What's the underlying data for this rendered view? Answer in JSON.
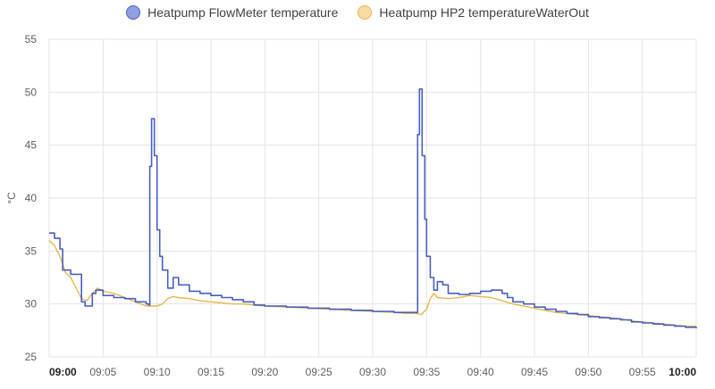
{
  "chart_data": {
    "type": "line",
    "ylabel": "°C",
    "ylim": [
      25,
      55
    ],
    "yticks": [
      25,
      30,
      35,
      40,
      45,
      50,
      55
    ],
    "xlim": [
      "09:00",
      "10:00"
    ],
    "xticks": [
      "09:00",
      "09:05",
      "09:10",
      "09:15",
      "09:20",
      "09:25",
      "09:30",
      "09:35",
      "09:40",
      "09:45",
      "09:50",
      "09:55",
      "10:00"
    ],
    "grid": true,
    "legend_position": "top-center",
    "series": [
      {
        "name": "Heatpump FlowMeter temperature",
        "color": "#4a5fc1",
        "fill": "#8ea0e0",
        "step": true,
        "points": [
          [
            "09:00",
            36.7
          ],
          [
            "09:00:30",
            36.2
          ],
          [
            "09:01",
            35.2
          ],
          [
            "09:01:15",
            33.2
          ],
          [
            "09:02",
            32.8
          ],
          [
            "09:02:30",
            32.8
          ],
          [
            "09:03",
            30.2
          ],
          [
            "09:03:20",
            29.8
          ],
          [
            "09:04",
            31.0
          ],
          [
            "09:04:20",
            31.3
          ],
          [
            "09:05",
            30.8
          ],
          [
            "09:06",
            30.6
          ],
          [
            "09:07",
            30.5
          ],
          [
            "09:08",
            30.2
          ],
          [
            "09:09",
            30.0
          ],
          [
            "09:09:15",
            29.9
          ],
          [
            "09:09:20",
            43.0
          ],
          [
            "09:09:30",
            47.5
          ],
          [
            "09:09:45",
            44.0
          ],
          [
            "09:10",
            37.0
          ],
          [
            "09:10:15",
            34.5
          ],
          [
            "09:10:30",
            33.2
          ],
          [
            "09:11",
            31.5
          ],
          [
            "09:11:30",
            32.5
          ],
          [
            "09:12",
            31.8
          ],
          [
            "09:13",
            31.2
          ],
          [
            "09:14",
            31.0
          ],
          [
            "09:15",
            30.8
          ],
          [
            "09:16",
            30.6
          ],
          [
            "09:17",
            30.4
          ],
          [
            "09:18",
            30.2
          ],
          [
            "09:19",
            29.9
          ],
          [
            "09:20",
            29.8
          ],
          [
            "09:22",
            29.7
          ],
          [
            "09:24",
            29.6
          ],
          [
            "09:26",
            29.5
          ],
          [
            "09:28",
            29.4
          ],
          [
            "09:30",
            29.3
          ],
          [
            "09:32",
            29.2
          ],
          [
            "09:33",
            29.2
          ],
          [
            "09:34",
            29.2
          ],
          [
            "09:34:10",
            46.0
          ],
          [
            "09:34:20",
            50.3
          ],
          [
            "09:34:35",
            44.0
          ],
          [
            "09:34:50",
            38.0
          ],
          [
            "09:35",
            34.5
          ],
          [
            "09:35:20",
            32.5
          ],
          [
            "09:35:40",
            31.3
          ],
          [
            "09:36",
            32.1
          ],
          [
            "09:36:30",
            31.8
          ],
          [
            "09:37",
            31.0
          ],
          [
            "09:38",
            30.9
          ],
          [
            "09:39",
            31.0
          ],
          [
            "09:40",
            31.2
          ],
          [
            "09:41",
            31.3
          ],
          [
            "09:42",
            31.0
          ],
          [
            "09:42:30",
            30.6
          ],
          [
            "09:43",
            30.2
          ],
          [
            "09:44",
            30.0
          ],
          [
            "09:45",
            29.7
          ],
          [
            "09:46",
            29.5
          ],
          [
            "09:47",
            29.3
          ],
          [
            "09:48",
            29.1
          ],
          [
            "09:49",
            29.0
          ],
          [
            "09:50",
            28.8
          ],
          [
            "09:51",
            28.7
          ],
          [
            "09:52",
            28.6
          ],
          [
            "09:53",
            28.5
          ],
          [
            "09:54",
            28.3
          ],
          [
            "09:55",
            28.2
          ],
          [
            "09:56",
            28.1
          ],
          [
            "09:57",
            28.0
          ],
          [
            "09:58",
            27.9
          ],
          [
            "09:59",
            27.8
          ],
          [
            "10:00",
            27.7
          ]
        ]
      },
      {
        "name": "Heatpump HP2 temperatureWaterOut",
        "color": "#e8b74c",
        "fill": "#f6dca5",
        "step": false,
        "points": [
          [
            "09:00",
            36.0
          ],
          [
            "09:00:30",
            35.5
          ],
          [
            "09:01",
            34.5
          ],
          [
            "09:01:30",
            33.0
          ],
          [
            "09:02",
            32.5
          ],
          [
            "09:02:30",
            31.5
          ],
          [
            "09:03",
            30.5
          ],
          [
            "09:03:30",
            30.3
          ],
          [
            "09:04",
            31.0
          ],
          [
            "09:04:30",
            31.5
          ],
          [
            "09:05",
            31.2
          ],
          [
            "09:06",
            31.0
          ],
          [
            "09:07",
            30.6
          ],
          [
            "09:08",
            30.2
          ],
          [
            "09:08:30",
            30.0
          ],
          [
            "09:09",
            29.8
          ],
          [
            "09:10",
            29.8
          ],
          [
            "09:10:30",
            30.0
          ],
          [
            "09:11",
            30.5
          ],
          [
            "09:11:30",
            30.7
          ],
          [
            "09:12",
            30.6
          ],
          [
            "09:13",
            30.5
          ],
          [
            "09:14",
            30.3
          ],
          [
            "09:15",
            30.2
          ],
          [
            "09:16",
            30.1
          ],
          [
            "09:17",
            30.0
          ],
          [
            "09:18",
            30.0
          ],
          [
            "09:20",
            29.8
          ],
          [
            "09:22",
            29.7
          ],
          [
            "09:24",
            29.6
          ],
          [
            "09:26",
            29.5
          ],
          [
            "09:28",
            29.4
          ],
          [
            "09:30",
            29.3
          ],
          [
            "09:32",
            29.2
          ],
          [
            "09:33",
            29.1
          ],
          [
            "09:34",
            29.1
          ],
          [
            "09:34:30",
            29.0
          ],
          [
            "09:35",
            29.5
          ],
          [
            "09:35:20",
            30.5
          ],
          [
            "09:35:40",
            31.0
          ],
          [
            "09:36",
            30.6
          ],
          [
            "09:37",
            30.5
          ],
          [
            "09:38",
            30.6
          ],
          [
            "09:39",
            30.8
          ],
          [
            "09:40",
            30.7
          ],
          [
            "09:41",
            30.6
          ],
          [
            "09:42",
            30.3
          ],
          [
            "09:43",
            30.0
          ],
          [
            "09:44",
            29.8
          ],
          [
            "09:45",
            29.6
          ],
          [
            "09:46",
            29.4
          ],
          [
            "09:47",
            29.2
          ],
          [
            "09:48",
            29.1
          ],
          [
            "09:49",
            29.0
          ],
          [
            "09:50",
            28.9
          ],
          [
            "09:51",
            28.8
          ],
          [
            "09:52",
            28.7
          ],
          [
            "09:53",
            28.6
          ],
          [
            "09:54",
            28.4
          ],
          [
            "09:55",
            28.3
          ],
          [
            "09:56",
            28.2
          ],
          [
            "09:57",
            28.1
          ],
          [
            "09:58",
            28.0
          ],
          [
            "09:59",
            27.9
          ],
          [
            "10:00",
            27.9
          ]
        ]
      }
    ]
  }
}
